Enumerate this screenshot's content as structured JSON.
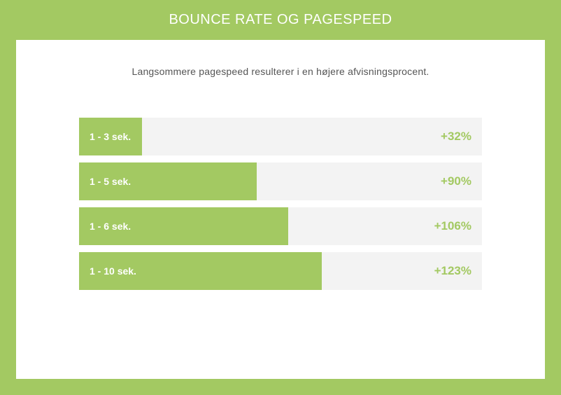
{
  "header": {
    "title": "BOUNCE RATE OG PAGESPEED"
  },
  "chart_data": {
    "type": "bar",
    "orientation": "horizontal",
    "title": "BOUNCE RATE OG PAGESPEED",
    "subtitle": "Langsommere pagespeed resulterer i en højere afvisningsprocent.",
    "categories": [
      "1 - 3 sek.",
      "1 - 5 sek.",
      "1 - 6 sek.",
      "1 - 10 sek."
    ],
    "values": [
      32,
      90,
      106,
      123
    ],
    "value_labels": [
      "+32%",
      "+90%",
      "+106%",
      "+123%"
    ],
    "unit": "%",
    "xlim": [
      0,
      204
    ],
    "grid": false,
    "legend": "none",
    "colors": {
      "bar": "#a3c962",
      "track": "#f3f3f3",
      "background": "#a3c962",
      "value_text": "#a3c962"
    }
  }
}
